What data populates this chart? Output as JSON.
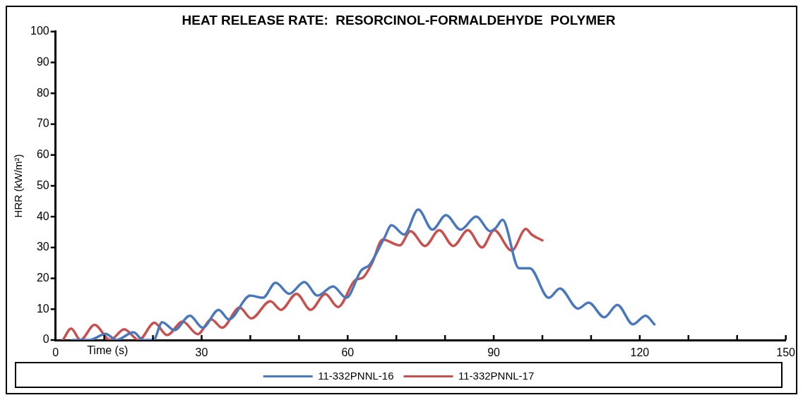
{
  "chart_data": {
    "type": "line",
    "title": "HEAT RELEASE RATE:  RESORCINOL-FORMALDEHYDE  POLYMER",
    "xlabel": "Time (s)",
    "ylabel": "HRR (kW/m²)",
    "xlim": [
      0,
      150
    ],
    "xticks": [
      0,
      {
        "value": 10,
        "label": null
      },
      {
        "value": 20,
        "label": null
      },
      30,
      {
        "value": 40,
        "label": null
      },
      {
        "value": 50,
        "label": null
      },
      60,
      {
        "value": 70,
        "label": null
      },
      {
        "value": 80,
        "label": null
      },
      90,
      {
        "value": 100,
        "label": null
      },
      {
        "value": 110,
        "label": null
      },
      120,
      {
        "value": 130,
        "label": null
      },
      {
        "value": 140,
        "label": null
      },
      150
    ],
    "ylim": [
      0,
      100
    ],
    "yticks": [
      0,
      10,
      20,
      30,
      40,
      50,
      60,
      70,
      80,
      90,
      100
    ],
    "grid": false,
    "legend": "bottom",
    "marker": "none",
    "line_style": "solid",
    "series": [
      {
        "name": "11-332PNNL-16",
        "color": "#4a78bd",
        "x": [
          3.5,
          7,
          10.3,
          12.5,
          16,
          18,
          20.1,
          21.9,
          24.4,
          27.6,
          30.2,
          33.5,
          35.6,
          40,
          42.6,
          45.2,
          48,
          51.1,
          53.8,
          57,
          59.7,
          62.8,
          64.5,
          67.5,
          69,
          71.6,
          74.5,
          77.4,
          80.2,
          83.2,
          86.4,
          89.3,
          90.5,
          91.8,
          95.2,
          97.4,
          101.3,
          103.6,
          107.3,
          109.5,
          112.7,
          115.4,
          118.6,
          121.2,
          123
        ],
        "values": [
          0,
          0,
          2,
          0,
          2.5,
          0,
          0,
          5.8,
          3.2,
          7.9,
          4,
          9.8,
          6.7,
          14.4,
          13.7,
          18.6,
          15,
          18.8,
          14.4,
          17.4,
          13.7,
          22.6,
          24.4,
          33,
          37.2,
          34.2,
          42.3,
          35.8,
          40.5,
          35.8,
          40,
          35.3,
          36.5,
          39,
          23.3,
          23.3,
          13.7,
          16.7,
          10.2,
          12.1,
          7.4,
          11.4,
          5.1,
          7.9,
          5.1
        ]
      },
      {
        "name": "11-332PNNL-17",
        "color": "#c8504e",
        "x": [
          1.5,
          3.2,
          5.1,
          8,
          11.2,
          14.1,
          17.1,
          20.3,
          22.9,
          26.1,
          29.2,
          32,
          34.2,
          37.8,
          40.2,
          44.1,
          46.3,
          49.5,
          52.4,
          55.4,
          58,
          61.6,
          63.1,
          65,
          67.2,
          70.7,
          72.9,
          75.9,
          78.8,
          81.7,
          84.7,
          87.6,
          90.1,
          93.7,
          96.6,
          97.8,
          100
        ],
        "values": [
          0,
          3.7,
          0,
          4.9,
          0,
          3.5,
          0,
          5.6,
          1.6,
          6,
          1.9,
          6.7,
          4,
          10.5,
          7,
          12.6,
          9.8,
          15,
          9.8,
          14.9,
          10.7,
          19.5,
          20.2,
          24.9,
          32.6,
          30.7,
          35.3,
          30.5,
          35.6,
          30.5,
          35.6,
          30,
          35.6,
          29,
          36,
          34.2,
          32.3
        ]
      }
    ]
  }
}
